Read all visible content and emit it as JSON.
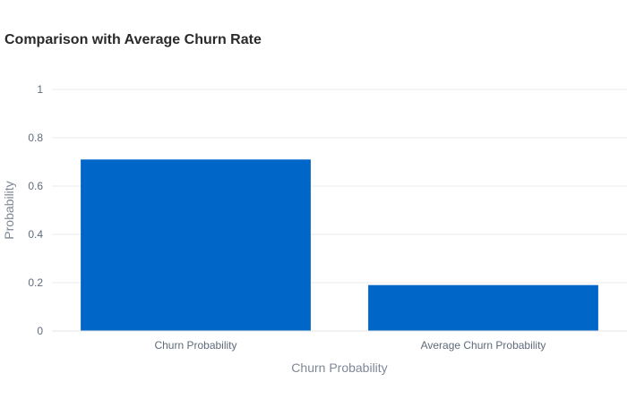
{
  "chart_data": {
    "type": "bar",
    "title": "Comparison with Average Churn Rate",
    "xlabel": "Churn Probability",
    "ylabel": "Probability",
    "categories": [
      "Churn Probability",
      "Average Churn Probability"
    ],
    "values": [
      0.71,
      0.19
    ],
    "ylim": [
      0,
      1
    ],
    "yticks": [
      0,
      0.2,
      0.4,
      0.6,
      0.8,
      1
    ],
    "ytick_labels": [
      "0",
      "0.2",
      "0.4",
      "0.6",
      "0.8",
      "1"
    ],
    "grid": true,
    "legend": "none",
    "colors": {
      "bar": "#0066c8",
      "grid": "#ebebeb",
      "baseline": "#e6e6e6"
    }
  }
}
